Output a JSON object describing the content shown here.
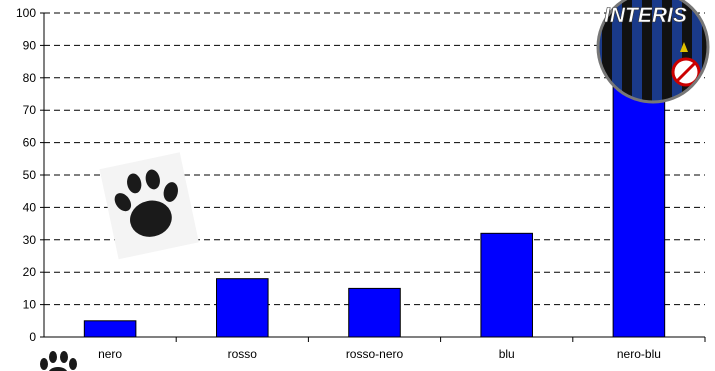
{
  "chart_data": {
    "type": "bar",
    "categories": [
      "nero",
      "rosso",
      "rosso-nero",
      "blu",
      "nero-blu"
    ],
    "values": [
      5,
      18,
      15,
      32,
      84
    ],
    "ylim": [
      0,
      100
    ],
    "yticks": [
      0,
      10,
      20,
      30,
      40,
      50,
      60,
      70,
      80,
      90,
      100
    ],
    "grid": true,
    "grid_style": "dashed",
    "bar_color": "#0000ff",
    "legend": "none"
  },
  "decorations": {
    "badge_icon": "inter-badge-icon",
    "badge_text": "INTERIS",
    "paw_icon": "paw-print-icon"
  }
}
